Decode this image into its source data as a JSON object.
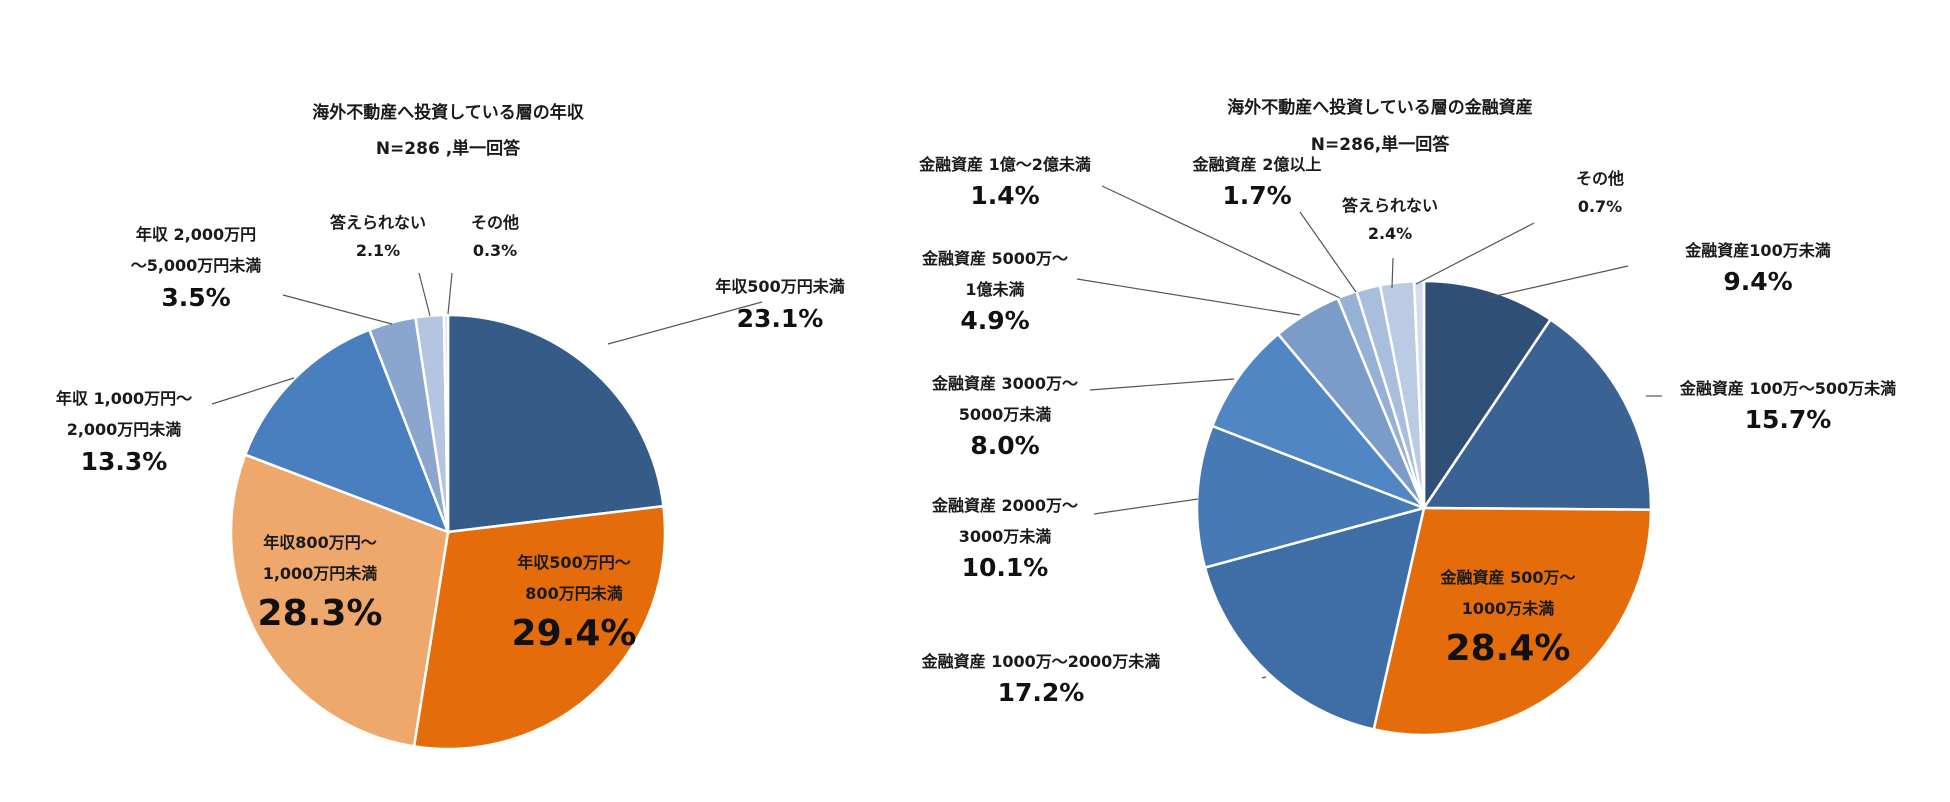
{
  "chart_data": [
    {
      "type": "pie",
      "title": "海外不動産へ投資している層の年収",
      "subtitle": "N=286 ,単一回答",
      "slices": [
        {
          "label": [
            "年収500万円未満"
          ],
          "value": 23.1,
          "display": "23.1%",
          "color": "#355b88"
        },
        {
          "label": [
            "年収500万円～",
            "800万円未満"
          ],
          "value": 29.4,
          "display": "29.4%",
          "color": "#e46c0a"
        },
        {
          "label": [
            "年収800万円～",
            "1,000万円未満"
          ],
          "value": 28.3,
          "display": "28.3%",
          "color": "#efa86c"
        },
        {
          "label": [
            "年収 1,000万円～",
            "2,000万円未満"
          ],
          "value": 13.3,
          "display": "13.3%",
          "color": "#4a7fbf"
        },
        {
          "label": [
            "年収 2,000万円",
            "～5,000万円未満"
          ],
          "value": 3.5,
          "display": "3.5%",
          "color": "#8aa6cf"
        },
        {
          "label": [
            "答えられない"
          ],
          "value": 2.1,
          "display": "2.1%",
          "color": "#b4c5e1"
        },
        {
          "label": [
            "その他"
          ],
          "value": 0.3,
          "display": "0.3%",
          "color": "#d6dfee"
        }
      ]
    },
    {
      "type": "pie",
      "title": "海外不動産へ投資している層の金融資産",
      "subtitle": "N=286,単一回答",
      "slices": [
        {
          "label": [
            "金融資産100万未満"
          ],
          "value": 9.4,
          "display": "9.4%",
          "color": "#2f4f77"
        },
        {
          "label": [
            "金融資産 100万～500万未満"
          ],
          "value": 15.7,
          "display": "15.7%",
          "color": "#3a6394"
        },
        {
          "label": [
            "金融資産 500万～",
            "1000万未満"
          ],
          "value": 28.4,
          "display": "28.4%",
          "color": "#e46c0a"
        },
        {
          "label": [
            "金融資産 1000万～2000万未満"
          ],
          "value": 17.2,
          "display": "17.2%",
          "color": "#3f6ea6"
        },
        {
          "label": [
            "金融資産 2000万～",
            "3000万未満"
          ],
          "value": 10.1,
          "display": "10.1%",
          "color": "#4779b4"
        },
        {
          "label": [
            "金融資産 3000万～",
            "5000万未満"
          ],
          "value": 8.0,
          "display": "8.0%",
          "color": "#5186c4"
        },
        {
          "label": [
            "金融資産 5000万～",
            "1億未満"
          ],
          "value": 4.9,
          "display": "4.9%",
          "color": "#7b9bc9"
        },
        {
          "label": [
            "金融資産 1億～2億未満"
          ],
          "value": 1.4,
          "display": "1.4%",
          "color": "#97b0d6"
        },
        {
          "label": [
            "金融資産 2億以上"
          ],
          "value": 1.7,
          "display": "1.7%",
          "color": "#a9bddd"
        },
        {
          "label": [
            "答えられない"
          ],
          "value": 2.4,
          "display": "2.4%",
          "color": "#bccbe4"
        },
        {
          "label": [
            "その他"
          ],
          "value": 0.7,
          "display": "0.7%",
          "color": "#d3ddee"
        }
      ]
    }
  ]
}
